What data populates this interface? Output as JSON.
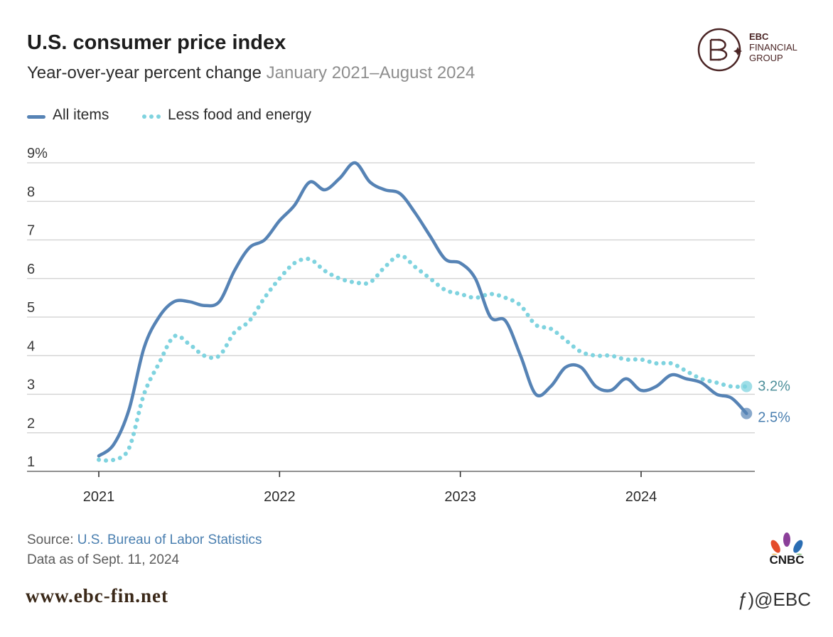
{
  "header": {
    "title": "U.S. consumer price index",
    "subtitle_main": "Year-over-year percent change",
    "subtitle_range": "January 2021–August 2024"
  },
  "legend": [
    {
      "label": "All items",
      "style": "solid",
      "color": "#5683b5"
    },
    {
      "label": "Less food and energy",
      "style": "dotted",
      "color": "#7fd3df"
    }
  ],
  "chart_data": {
    "type": "line",
    "title": "U.S. consumer price index",
    "ylabel": "",
    "xlabel": "",
    "x_unit": "year",
    "xlim": [
      2020.6,
      2024.65
    ],
    "ylim": [
      1,
      9
    ],
    "y_ticks": [
      "9%",
      "8",
      "7",
      "6",
      "5",
      "4",
      "3",
      "2",
      "1"
    ],
    "y_tick_values": [
      9,
      8,
      7,
      6,
      5,
      4,
      3,
      2,
      1
    ],
    "x_ticks": [
      "2021",
      "2022",
      "2023",
      "2024"
    ],
    "x_tick_values": [
      2021,
      2022,
      2023,
      2024
    ],
    "grid": "horizontal",
    "series": [
      {
        "name": "All items",
        "style": "solid",
        "color": "#5683b5",
        "end_label": "2.5%",
        "x": [
          2021.0,
          2021.083,
          2021.167,
          2021.25,
          2021.333,
          2021.417,
          2021.5,
          2021.583,
          2021.667,
          2021.75,
          2021.833,
          2021.917,
          2022.0,
          2022.083,
          2022.167,
          2022.25,
          2022.333,
          2022.417,
          2022.5,
          2022.583,
          2022.667,
          2022.75,
          2022.833,
          2022.917,
          2023.0,
          2023.083,
          2023.167,
          2023.25,
          2023.333,
          2023.417,
          2023.5,
          2023.583,
          2023.667,
          2023.75,
          2023.833,
          2023.917,
          2024.0,
          2024.083,
          2024.167,
          2024.25,
          2024.333,
          2024.417,
          2024.5,
          2024.583
        ],
        "values": [
          1.4,
          1.7,
          2.6,
          4.2,
          5.0,
          5.4,
          5.4,
          5.3,
          5.4,
          6.2,
          6.8,
          7.0,
          7.5,
          7.9,
          8.5,
          8.3,
          8.6,
          9.0,
          8.5,
          8.3,
          8.2,
          7.7,
          7.1,
          6.5,
          6.4,
          6.0,
          5.0,
          4.9,
          4.0,
          3.0,
          3.2,
          3.7,
          3.7,
          3.2,
          3.1,
          3.4,
          3.1,
          3.2,
          3.5,
          3.4,
          3.3,
          3.0,
          2.9,
          2.5
        ]
      },
      {
        "name": "Less food and energy",
        "style": "dotted",
        "color": "#7fd3df",
        "end_label": "3.2%",
        "x": [
          2021.0,
          2021.083,
          2021.167,
          2021.25,
          2021.333,
          2021.417,
          2021.5,
          2021.583,
          2021.667,
          2021.75,
          2021.833,
          2021.917,
          2022.0,
          2022.083,
          2022.167,
          2022.25,
          2022.333,
          2022.417,
          2022.5,
          2022.583,
          2022.667,
          2022.75,
          2022.833,
          2022.917,
          2023.0,
          2023.083,
          2023.167,
          2023.25,
          2023.333,
          2023.417,
          2023.5,
          2023.583,
          2023.667,
          2023.75,
          2023.833,
          2023.917,
          2024.0,
          2024.083,
          2024.167,
          2024.25,
          2024.333,
          2024.417,
          2024.5,
          2024.583
        ],
        "values": [
          1.3,
          1.3,
          1.6,
          3.0,
          3.8,
          4.5,
          4.3,
          4.0,
          4.0,
          4.6,
          4.9,
          5.5,
          6.0,
          6.4,
          6.5,
          6.2,
          6.0,
          5.9,
          5.9,
          6.3,
          6.6,
          6.3,
          6.0,
          5.7,
          5.6,
          5.5,
          5.6,
          5.5,
          5.3,
          4.8,
          4.7,
          4.4,
          4.1,
          4.0,
          4.0,
          3.9,
          3.9,
          3.8,
          3.8,
          3.6,
          3.4,
          3.3,
          3.2,
          3.2
        ]
      }
    ]
  },
  "footer": {
    "source_prefix": "Source: ",
    "source_link": "U.S. Bureau of Labor Statistics",
    "data_as_of": "Data as of Sept. 11, 2024"
  },
  "watermark": {
    "url": "www.ebc-fin.net",
    "handle": "@EBC"
  },
  "ebc_logo": {
    "line1": "EBC",
    "line2": "FINANCIAL",
    "line3": "GROUP"
  },
  "cnbc_logo": {
    "text": "CNBC"
  }
}
